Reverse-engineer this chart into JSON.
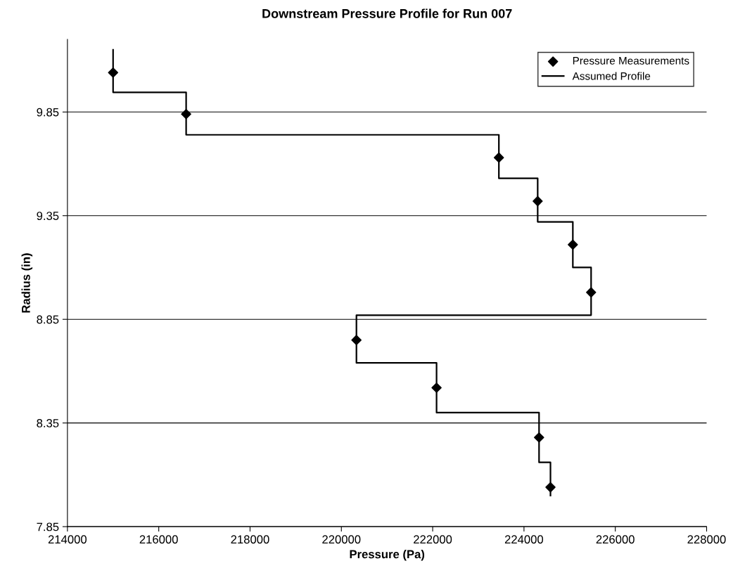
{
  "chart_data": {
    "type": "scatter",
    "title": "Downstream Pressure Profile for Run 007",
    "xlabel": "Pressure (Pa)",
    "ylabel": "Radius (in)",
    "xlim": [
      214000,
      228000
    ],
    "xticks": [
      214000,
      216000,
      218000,
      220000,
      222000,
      224000,
      226000,
      228000
    ],
    "ylim": [
      7.85,
      10.2
    ],
    "yticks": [
      7.85,
      8.35,
      8.85,
      9.35,
      9.85
    ],
    "grid": "y",
    "legend": "top right",
    "series": [
      {
        "name": "Pressure Measurements",
        "marker": "diamond",
        "color": "#000000",
        "x": [
          215000,
          216600,
          223450,
          224300,
          225070,
          225470,
          220330,
          222085,
          224330,
          224580
        ],
        "values": [
          10.04,
          9.84,
          9.63,
          9.42,
          9.21,
          8.98,
          8.75,
          8.52,
          8.28,
          8.04
        ]
      },
      {
        "name": "Assumed Profile",
        "type": "line",
        "marker": "none",
        "line_style": "solid",
        "color": "#000000",
        "x": [
          215000,
          215000,
          216600,
          216600,
          223450,
          223450,
          224300,
          224300,
          225070,
          225070,
          225470,
          225470,
          220330,
          220330,
          222085,
          222085,
          224330,
          224330,
          224580,
          224580
        ],
        "values": [
          10.15,
          9.945,
          9.945,
          9.74,
          9.74,
          9.53,
          9.53,
          9.32,
          9.32,
          9.1,
          9.1,
          8.87,
          8.87,
          8.64,
          8.64,
          8.4,
          8.4,
          8.16,
          8.16,
          8.0
        ]
      }
    ]
  }
}
